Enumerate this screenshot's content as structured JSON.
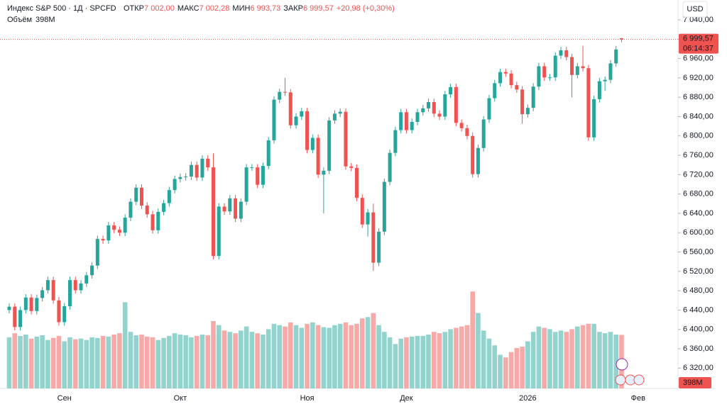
{
  "chart_data": {
    "type": "candlestick",
    "header": {
      "title": "Индекс S&P 500 · 1Д · SPCFD",
      "open_label": "ОТКР",
      "open": "7 002,00",
      "high_label": "МАКС",
      "high": "7 002,28",
      "low_label": "МИН",
      "low": "6 993,73",
      "close_label": "ЗАКР",
      "close": "6 999,57",
      "change": "+20,98 (+0,30%)",
      "volume_label": "Объём",
      "volume": "398M",
      "timer": "06:14:37",
      "currency": "USD"
    },
    "categories": [
      null,
      null,
      null,
      null,
      null,
      null,
      null,
      null,
      null,
      null,
      "Сен",
      null,
      null,
      null,
      null,
      null,
      null,
      null,
      null,
      null,
      null,
      null,
      null,
      null,
      null,
      null,
      null,
      null,
      null,
      null,
      null,
      "Окт",
      null,
      null,
      null,
      null,
      null,
      null,
      null,
      null,
      null,
      null,
      null,
      null,
      null,
      null,
      null,
      null,
      null,
      null,
      null,
      null,
      null,
      null,
      "Ноя",
      null,
      null,
      null,
      null,
      null,
      null,
      null,
      null,
      null,
      null,
      null,
      null,
      null,
      null,
      null,
      null,
      null,
      "Дек",
      null,
      null,
      null,
      null,
      null,
      null,
      null,
      null,
      null,
      null,
      null,
      null,
      null,
      null,
      null,
      null,
      null,
      null,
      null,
      null,
      null,
      "2026",
      null,
      null,
      null,
      null,
      null,
      null,
      null,
      null,
      null,
      null,
      null,
      null,
      null,
      null,
      null,
      null,
      null,
      null,
      null,
      "Фев",
      null
    ],
    "open": [
      6440,
      6447,
      6405,
      6440,
      6466,
      6438,
      6465,
      6481,
      6502,
      6460,
      6415,
      6448,
      6502,
      6481,
      6495,
      6512,
      6532,
      6587,
      6584,
      6615,
      6606,
      6600,
      6631,
      6664,
      6693,
      6656,
      6638,
      6605,
      6643,
      6661,
      6688,
      6711,
      6715,
      6716,
      6740,
      6714,
      6753,
      6735,
      6552,
      6654,
      6644,
      6671,
      6629,
      6664,
      6735,
      6735,
      6699,
      6738,
      6791,
      6875,
      6891,
      6890,
      6822,
      6840,
      6851,
      6771,
      6796,
      6720,
      6728,
      6832,
      6846,
      6850,
      6737,
      6734,
      6672,
      6617,
      6642,
      6538,
      6602,
      6705,
      6765,
      6812,
      6849,
      6812,
      6829,
      6849,
      6857,
      6870,
      6846,
      6840,
      6886,
      6901,
      6827,
      6816,
      6800,
      6721,
      6775,
      6834,
      6878,
      6909,
      6932,
      6929,
      6905,
      6896,
      6845,
      6858,
      6902,
      6944,
      6921,
      6921,
      6966,
      6977,
      6963,
      6926,
      6944,
      6940,
      6797,
      6876,
      6913,
      6916,
      6950,
      7002.0,
      null,
      null,
      null,
      null
    ],
    "high": [
      6454,
      6454,
      6447,
      6473,
      6473,
      6472,
      6488,
      6509,
      6509,
      6467,
      6455,
      6509,
      6509,
      6502,
      6519,
      6539,
      6594,
      6594,
      6622,
      6622,
      6613,
      6638,
      6671,
      6700,
      6700,
      6663,
      6645,
      6650,
      6668,
      6695,
      6718,
      6722,
      6723,
      6747,
      6747,
      6760,
      6760,
      6764,
      6661,
      6661,
      6678,
      6678,
      6671,
      6742,
      6742,
      6742,
      6745,
      6798,
      6882,
      6898,
      6920,
      6897,
      6847,
      6858,
      6858,
      6803,
      6803,
      6735,
      6839,
      6853,
      6857,
      6857,
      6744,
      6741,
      6679,
      6649,
      6660,
      6609,
      6712,
      6772,
      6819,
      6856,
      6856,
      6836,
      6856,
      6864,
      6877,
      6877,
      6853,
      6893,
      6908,
      6908,
      6834,
      6823,
      6807,
      6782,
      6841,
      6885,
      6916,
      6939,
      6939,
      6936,
      6912,
      6903,
      6865,
      6909,
      6951,
      6951,
      6928,
      6973,
      6984,
      6984,
      6970,
      6951,
      6986,
      6947,
      6883,
      6920,
      6923,
      6957,
      6986,
      7002.28,
      null,
      null,
      null,
      null
    ],
    "low": [
      6433,
      6398,
      6398,
      6433,
      6431,
      6431,
      6458,
      6474,
      6453,
      6408,
      6408,
      6441,
      6474,
      6474,
      6488,
      6505,
      6525,
      6577,
      6577,
      6599,
      6593,
      6593,
      6624,
      6657,
      6649,
      6631,
      6598,
      6598,
      6636,
      6654,
      6681,
      6704,
      6708,
      6709,
      6707,
      6707,
      6728,
      6545,
      6545,
      6637,
      6637,
      6622,
      6622,
      6657,
      6728,
      6692,
      6692,
      6731,
      6784,
      6868,
      6883,
      6815,
      6815,
      6833,
      6764,
      6764,
      6713,
      6640,
      6721,
      6825,
      6839,
      6730,
      6727,
      6665,
      6610,
      6592,
      6521,
      6531,
      6595,
      6698,
      6758,
      6805,
      6805,
      6805,
      6822,
      6842,
      6850,
      6839,
      6833,
      6833,
      6879,
      6820,
      6809,
      6793,
      6714,
      6714,
      6768,
      6827,
      6871,
      6902,
      6922,
      6898,
      6889,
      6825,
      6838,
      6851,
      6895,
      6914,
      6914,
      6914,
      6959,
      6956,
      6880,
      6919,
      6933,
      6790,
      6790,
      6869,
      6893,
      6909,
      6943,
      6993.73,
      null,
      null,
      null,
      null
    ],
    "close": [
      6447,
      6405,
      6440,
      6466,
      6438,
      6465,
      6481,
      6502,
      6460,
      6415,
      6448,
      6502,
      6481,
      6495,
      6512,
      6532,
      6587,
      6584,
      6615,
      6606,
      6600,
      6631,
      6664,
      6693,
      6656,
      6638,
      6605,
      6643,
      6661,
      6688,
      6711,
      6715,
      6716,
      6740,
      6714,
      6753,
      6735,
      6552,
      6654,
      6644,
      6671,
      6629,
      6664,
      6735,
      6735,
      6699,
      6738,
      6791,
      6875,
      6891,
      6890,
      6822,
      6840,
      6851,
      6771,
      6796,
      6720,
      6728,
      6832,
      6846,
      6850,
      6737,
      6734,
      6672,
      6617,
      6642,
      6538,
      6602,
      6705,
      6765,
      6812,
      6849,
      6812,
      6829,
      6849,
      6857,
      6870,
      6846,
      6840,
      6886,
      6901,
      6827,
      6816,
      6800,
      6721,
      6775,
      6834,
      6878,
      6909,
      6932,
      6929,
      6905,
      6896,
      6845,
      6858,
      6902,
      6944,
      6921,
      6921,
      6966,
      6977,
      6963,
      6926,
      6944,
      6940,
      6797,
      6876,
      6913,
      6916,
      6950,
      6978.59,
      6999.57,
      null,
      null,
      null,
      null
    ],
    "volume": [
      380,
      410,
      390,
      400,
      370,
      385,
      395,
      360,
      375,
      390,
      350,
      380,
      365,
      370,
      360,
      380,
      375,
      390,
      385,
      400,
      410,
      640,
      420,
      395,
      400,
      385,
      380,
      360,
      375,
      390,
      410,
      400,
      395,
      380,
      390,
      400,
      395,
      500,
      470,
      430,
      420,
      410,
      430,
      460,
      420,
      410,
      400,
      440,
      480,
      470,
      460,
      490,
      470,
      450,
      480,
      490,
      470,
      455,
      450,
      470,
      480,
      490,
      470,
      480,
      520,
      530,
      560,
      470,
      420,
      380,
      330,
      370,
      380,
      385,
      390,
      390,
      400,
      420,
      410,
      420,
      440,
      450,
      460,
      470,
      720,
      560,
      430,
      370,
      320,
      250,
      230,
      270,
      300,
      310,
      350,
      420,
      460,
      450,
      440,
      420,
      430,
      420,
      440,
      460,
      470,
      480,
      480,
      420,
      410,
      420,
      400,
      398,
      null,
      null,
      null,
      null
    ],
    "up_color": "#26a69a",
    "down_color": "#ef5350",
    "up_volume_color": "#92d3cd",
    "down_volume_color": "#f7a9a7",
    "ylim": [
      6278,
      7081
    ],
    "yticks": [
      {
        "value": 6320,
        "label": "6 320,00"
      },
      {
        "value": 6360,
        "label": "6 360,00"
      },
      {
        "value": 6400,
        "label": "6 400,00"
      },
      {
        "value": 6440,
        "label": "6 440,00"
      },
      {
        "value": 6480,
        "label": "6 480,00"
      },
      {
        "value": 6520,
        "label": "6 520,00"
      },
      {
        "value": 6560,
        "label": "6 560,00"
      },
      {
        "value": 6600,
        "label": "6 600,00"
      },
      {
        "value": 6640,
        "label": "6 640,00"
      },
      {
        "value": 6680,
        "label": "6 680,00"
      },
      {
        "value": 6720,
        "label": "6 720,00"
      },
      {
        "value": 6760,
        "label": "6 760,00"
      },
      {
        "value": 6800,
        "label": "6 800,00"
      },
      {
        "value": 6840,
        "label": "6 840,00"
      },
      {
        "value": 6880,
        "label": "6 880,00"
      },
      {
        "value": 6920,
        "label": "6 920,00"
      },
      {
        "value": 6960,
        "label": "6 960,00"
      },
      {
        "value": 7000,
        "label": "7 000,00"
      },
      {
        "value": 7040,
        "label": "7 040,00"
      }
    ],
    "grid": false
  }
}
